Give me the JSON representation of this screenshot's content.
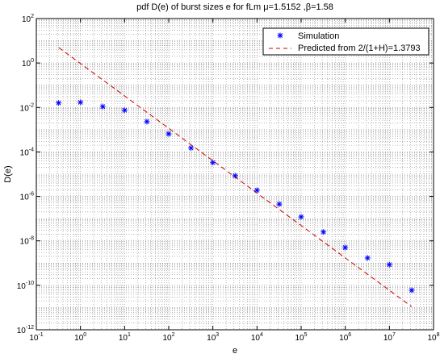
{
  "chart_data": {
    "type": "scatter",
    "title": {
      "prefix": "pdf D(e) of  burst sizes e for fLm ",
      "mu_symbol": "μ",
      "mu_value": "=1.5152",
      "separator": " ,",
      "beta_symbol": "β",
      "beta_value": "=1.58"
    },
    "xlabel": "e",
    "ylabel": "D(e)",
    "xscale": "log",
    "yscale": "log",
    "xlim": [
      0.1,
      100000000
    ],
    "ylim": [
      1e-12,
      100
    ],
    "grid": true,
    "legend_position": "top-right",
    "x_ticks": [
      {
        "base": "10",
        "exp": "-1"
      },
      {
        "base": "10",
        "exp": "0"
      },
      {
        "base": "10",
        "exp": "1"
      },
      {
        "base": "10",
        "exp": "2"
      },
      {
        "base": "10",
        "exp": "3"
      },
      {
        "base": "10",
        "exp": "4"
      },
      {
        "base": "10",
        "exp": "5"
      },
      {
        "base": "10",
        "exp": "6"
      },
      {
        "base": "10",
        "exp": "7"
      },
      {
        "base": "10",
        "exp": "8"
      }
    ],
    "y_ticks": [
      {
        "base": "10",
        "exp": "-12"
      },
      {
        "base": "10",
        "exp": "-10"
      },
      {
        "base": "10",
        "exp": "-8"
      },
      {
        "base": "10",
        "exp": "-6"
      },
      {
        "base": "10",
        "exp": "-4"
      },
      {
        "base": "10",
        "exp": "-2"
      },
      {
        "base": "10",
        "exp": "0"
      },
      {
        "base": "10",
        "exp": "2"
      }
    ],
    "series": [
      {
        "name": "Simulation",
        "style": "star-markers",
        "color": "#0000ff",
        "x": [
          0.32,
          1.0,
          3.2,
          10,
          32,
          100,
          320,
          1000,
          3200,
          10000,
          32000,
          100000,
          320000,
          1000000,
          3200000,
          10000000,
          32000000
        ],
        "y": [
          0.016,
          0.017,
          0.011,
          0.0075,
          0.0023,
          0.00065,
          0.00015,
          3.3e-05,
          8.5e-06,
          1.9e-06,
          4.5e-07,
          1.2e-07,
          2.5e-08,
          5e-09,
          1.7e-09,
          8.5e-10,
          6e-11
        ]
      },
      {
        "name": "Predicted from 2/(1+H)=1.3793",
        "style": "dashed-line",
        "color": "#cc0000",
        "x": [
          0.32,
          32000000
        ],
        "y": [
          5.0,
          1.1e-11
        ]
      }
    ]
  }
}
